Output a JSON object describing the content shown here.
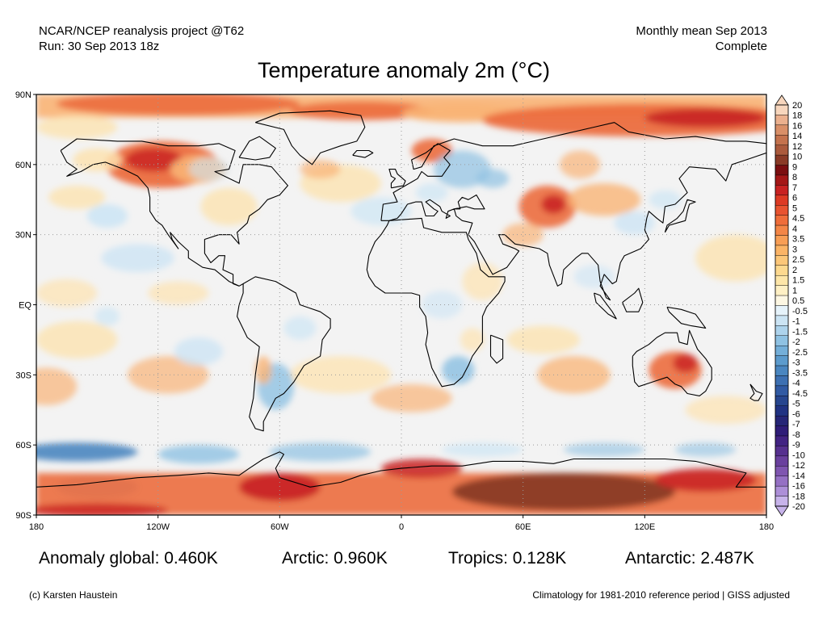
{
  "header": {
    "left_line1": "NCAR/NCEP reanalysis project @T62",
    "left_line2": "Run: 30 Sep 2013 18z",
    "right_line1": "Monthly mean Sep 2013",
    "right_line2": "Complete"
  },
  "title": "Temperature anomaly 2m (°C)",
  "axes": {
    "lat_labels": [
      "90N",
      "60N",
      "30N",
      "EQ",
      "30S",
      "60S",
      "90S"
    ],
    "lon_labels": [
      "180",
      "120W",
      "60W",
      "0",
      "60E",
      "120E",
      "180"
    ]
  },
  "colorbar": {
    "labels": [
      "20",
      "18",
      "16",
      "14",
      "12",
      "10",
      "9",
      "8",
      "7",
      "6",
      "5",
      "4.5",
      "4",
      "3.5",
      "3",
      "2.5",
      "2",
      "1.5",
      "1",
      "0.5",
      "-0.5",
      "-1",
      "-1.5",
      "-2",
      "-2.5",
      "-3",
      "-3.5",
      "-4",
      "-4.5",
      "-5",
      "-6",
      "-7",
      "-8",
      "-9",
      "-10",
      "-12",
      "-14",
      "-16",
      "-18",
      "-20"
    ],
    "colors": [
      "#f7d6bd",
      "#ebb08e",
      "#d98f68",
      "#c4724d",
      "#ab5a3c",
      "#8a3a26",
      "#7b0e10",
      "#a41717",
      "#c82222",
      "#dd3a24",
      "#e85330",
      "#ef6d3a",
      "#f48647",
      "#f89e55",
      "#fbb466",
      "#fcc779",
      "#fdd98f",
      "#fee6a8",
      "#fff0c4",
      "#fdf7e3",
      "#e6f3fb",
      "#cbe4f4",
      "#add3ec",
      "#8fc2e3",
      "#74afd9",
      "#5c9bcd",
      "#4a86c0",
      "#3d70b2",
      "#315aa3",
      "#27468f",
      "#213383",
      "#262677",
      "#2f1d78",
      "#422383",
      "#56308f",
      "#6a409e",
      "#7f55b0",
      "#9570c4",
      "#ad8fd8",
      "#c7b3ea"
    ]
  },
  "map": {
    "colors": {
      "ocean_neutral": "#f3f3f3",
      "warm_light": "#fde3b0",
      "warm_mid": "#f9b476",
      "warm_strong": "#ec6d3e",
      "warm_deep": "#c82222",
      "warm_extreme": "#8a3a26",
      "cool_light": "#cde5f5",
      "cool_mid": "#8fc2e3",
      "cool_strong": "#4a86c0",
      "coast": "#000000"
    }
  },
  "stats": {
    "global": "Anomaly global: 0.460K",
    "arctic": "Arctic: 0.960K",
    "tropics": "Tropics: 0.128K",
    "antarctic": "Antarctic: 2.487K"
  },
  "footer": {
    "left": "(c) Karsten Haustein",
    "right": "Climatology for 1981-2010 reference period | GISS adjusted"
  }
}
